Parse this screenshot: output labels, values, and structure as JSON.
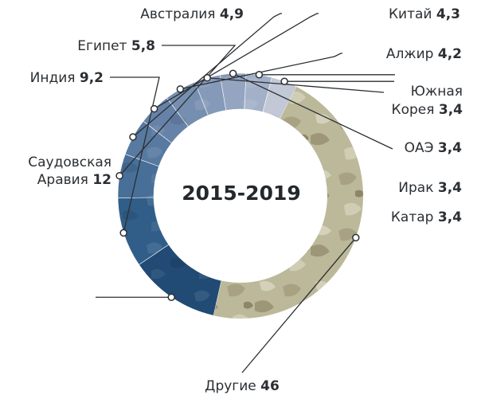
{
  "chart_data": {
    "type": "pie",
    "variant": "donut",
    "center_label": "2015-2019",
    "slices": [
      {
        "name": "Саудовская Аравия",
        "label_lines": [
          "Саудовская",
          "Аравия"
        ],
        "value": 12,
        "value_text": "12",
        "color": "#214a74"
      },
      {
        "name": "Индия",
        "label_lines": [
          "Индия"
        ],
        "value": 9.2,
        "value_text": "9,2",
        "color": "#315e88"
      },
      {
        "name": "Египет",
        "label_lines": [
          "Египет"
        ],
        "value": 5.8,
        "value_text": "5,8",
        "color": "#476f98"
      },
      {
        "name": "Австралия",
        "label_lines": [
          "Австралия"
        ],
        "value": 4.9,
        "value_text": "4,9",
        "color": "#5879a0"
      },
      {
        "name": "Китай",
        "label_lines": [
          "Китай"
        ],
        "value": 4.3,
        "value_text": "4,3",
        "color": "#6682a8"
      },
      {
        "name": "Алжир",
        "label_lines": [
          "Алжир"
        ],
        "value": 4.2,
        "value_text": "4,2",
        "color": "#768fb0"
      },
      {
        "name": "Южная Корея",
        "label_lines": [
          "Южная",
          "Корея"
        ],
        "value": 3.4,
        "value_text": "3,4",
        "color": "#8599b8"
      },
      {
        "name": "ОАЭ",
        "label_lines": [
          "ОАЭ"
        ],
        "value": 3.4,
        "value_text": "3,4",
        "color": "#93a5c0"
      },
      {
        "name": "Ирак",
        "label_lines": [
          "Ирак"
        ],
        "value": 3.4,
        "value_text": "3,4",
        "color": "#a2b0c8"
      },
      {
        "name": "Катар",
        "label_lines": [
          "Катар"
        ],
        "value": 3.4,
        "value_text": "3,4",
        "color": "#c2c8d6"
      },
      {
        "name": "Другие",
        "label_lines": [
          "Другие"
        ],
        "value": 46,
        "value_text": "46",
        "color": "#b8b598"
      }
    ],
    "colors": {
      "leader_line": "#2b2f33",
      "separator": "#ffffff"
    }
  }
}
